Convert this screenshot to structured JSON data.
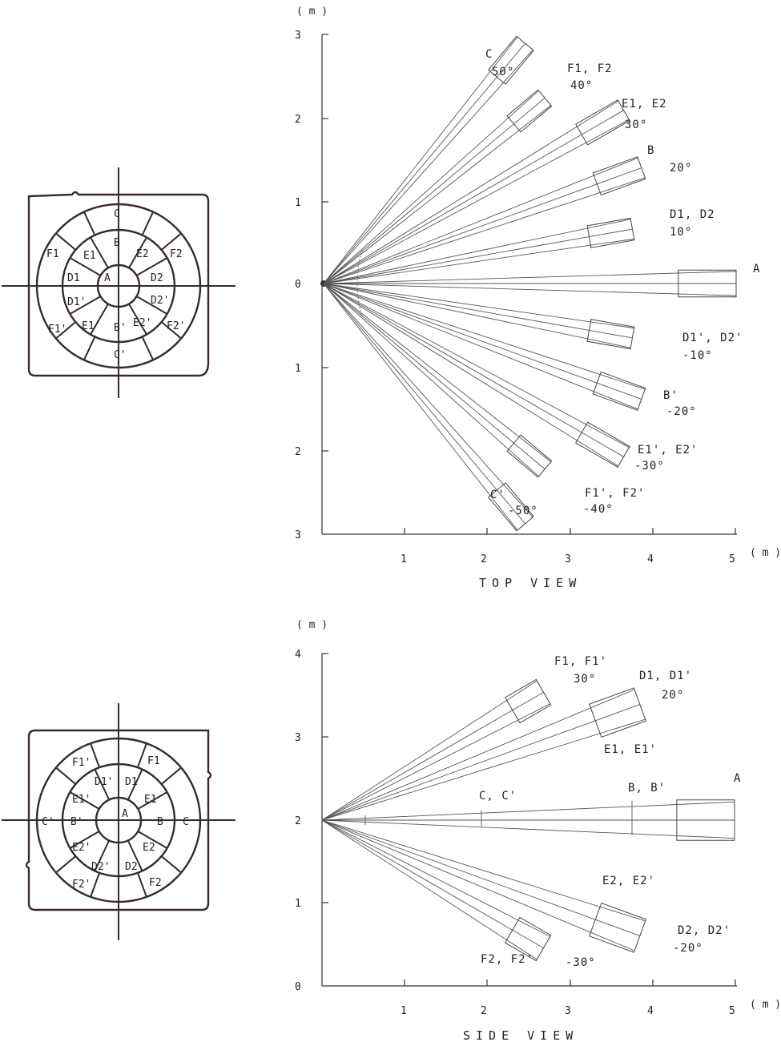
{
  "top_view": {
    "title": "TOP VIEW",
    "y_unit": "( m )",
    "x_unit": "( m )",
    "x_ticks": [
      "1",
      "2",
      "3",
      "4",
      "5"
    ],
    "y_ticks": [
      "3",
      "2",
      "1",
      "0",
      "1",
      "2",
      "3"
    ],
    "zones": [
      {
        "id": "C",
        "angle": 50,
        "length": 3.8,
        "label": "C",
        "angle_label": "50°"
      },
      {
        "id": "F1F2",
        "angle": 40,
        "length": 3.5,
        "label": "F1, F2",
        "angle_label": "40°"
      },
      {
        "id": "E1E2",
        "angle": 30,
        "length": 4.2,
        "label": "E1, E2",
        "angle_label": "30°"
      },
      {
        "id": "B",
        "angle": 20,
        "length": 4.1,
        "label": "B",
        "angle_label": "20°"
      },
      {
        "id": "D1D2",
        "angle": 10,
        "length": 3.8,
        "label": "D1, D2",
        "angle_label": "10°"
      },
      {
        "id": "A",
        "angle": 0,
        "length": 5.0,
        "label": "A",
        "angle_label": ""
      },
      {
        "id": "D1pD2p",
        "angle": -10,
        "length": 3.8,
        "label": "D1', D2'",
        "angle_label": "-10°"
      },
      {
        "id": "Bp",
        "angle": -20,
        "length": 4.1,
        "label": "B'",
        "angle_label": "-20°"
      },
      {
        "id": "E1pE2p",
        "angle": -30,
        "length": 4.2,
        "label": "E1', E2'",
        "angle_label": "-30°"
      },
      {
        "id": "F1pF2p",
        "angle": -40,
        "length": 3.5,
        "label": "F1', F2'",
        "angle_label": "-40°"
      },
      {
        "id": "Cp",
        "angle": -50,
        "length": 3.8,
        "label": "C'",
        "angle_label": "-50°"
      }
    ]
  },
  "side_view": {
    "title": "SIDE VIEW",
    "y_unit": "( m )",
    "x_unit": "( m )",
    "x_ticks": [
      "1",
      "2",
      "3",
      "4",
      "5"
    ],
    "y_ticks": [
      "4",
      "3",
      "2",
      "1",
      "0"
    ],
    "zones": [
      {
        "id": "F1F1p",
        "angle": 30,
        "length": 3.1,
        "label": "F1, F1'",
        "angle_label": "30°"
      },
      {
        "id": "D1D1p",
        "angle": 20,
        "length": 4.1,
        "label": "D1, D1'",
        "angle_label": "20°"
      },
      {
        "id": "A",
        "angle": 0,
        "length": 5.0,
        "label": "A",
        "angle_label": ""
      },
      {
        "id": "D2D2p",
        "angle": -20,
        "length": 4.1,
        "label": "D2, D2'",
        "angle_label": "-20°"
      },
      {
        "id": "F2F2p",
        "angle": -30,
        "length": 3.1,
        "label": "F2, F2'",
        "angle_label": "-30°"
      }
    ],
    "extra_labels": {
      "e1": "E1, E1'",
      "cc": "C, C'",
      "bb": "B, B'",
      "e2": "E2, E2'"
    }
  },
  "lens_top": {
    "labels": [
      "C",
      "B",
      "F1",
      "E1",
      "E2",
      "F2",
      "D1",
      "A",
      "D2",
      "D1'",
      "D2'",
      "F1'",
      "E1'",
      "B'",
      "E2'",
      "F2'",
      "C'"
    ]
  },
  "lens_side": {
    "labels": [
      "F1'",
      "F1",
      "D1'",
      "D1",
      "E1'",
      "E1",
      "C'",
      "B'",
      "A",
      "B",
      "C",
      "E2'",
      "E2",
      "D2'",
      "D2",
      "F2'",
      "F2"
    ]
  }
}
